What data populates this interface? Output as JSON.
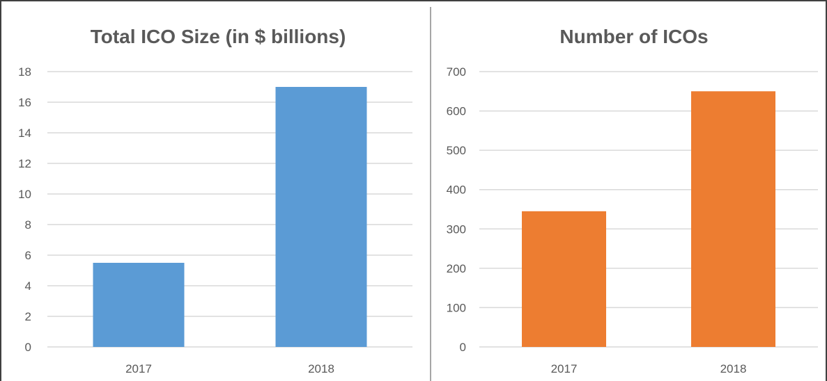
{
  "chart_data": [
    {
      "type": "bar",
      "title": "Total ICO Size (in $ billions)",
      "categories": [
        "2017",
        "2018"
      ],
      "values": [
        5.5,
        17
      ],
      "ylim": [
        0,
        18
      ],
      "yticks": [
        0,
        2,
        4,
        6,
        8,
        10,
        12,
        14,
        16,
        18
      ],
      "xlabel": "",
      "ylabel": "",
      "grid": true,
      "color": "#5b9bd5"
    },
    {
      "type": "bar",
      "title": "Number of ICOs",
      "categories": [
        "2017",
        "2018"
      ],
      "values": [
        345,
        650
      ],
      "ylim": [
        0,
        700
      ],
      "yticks": [
        0,
        100,
        200,
        300,
        400,
        500,
        600,
        700
      ],
      "xlabel": "",
      "ylabel": "",
      "grid": true,
      "color": "#ed7d31"
    }
  ]
}
